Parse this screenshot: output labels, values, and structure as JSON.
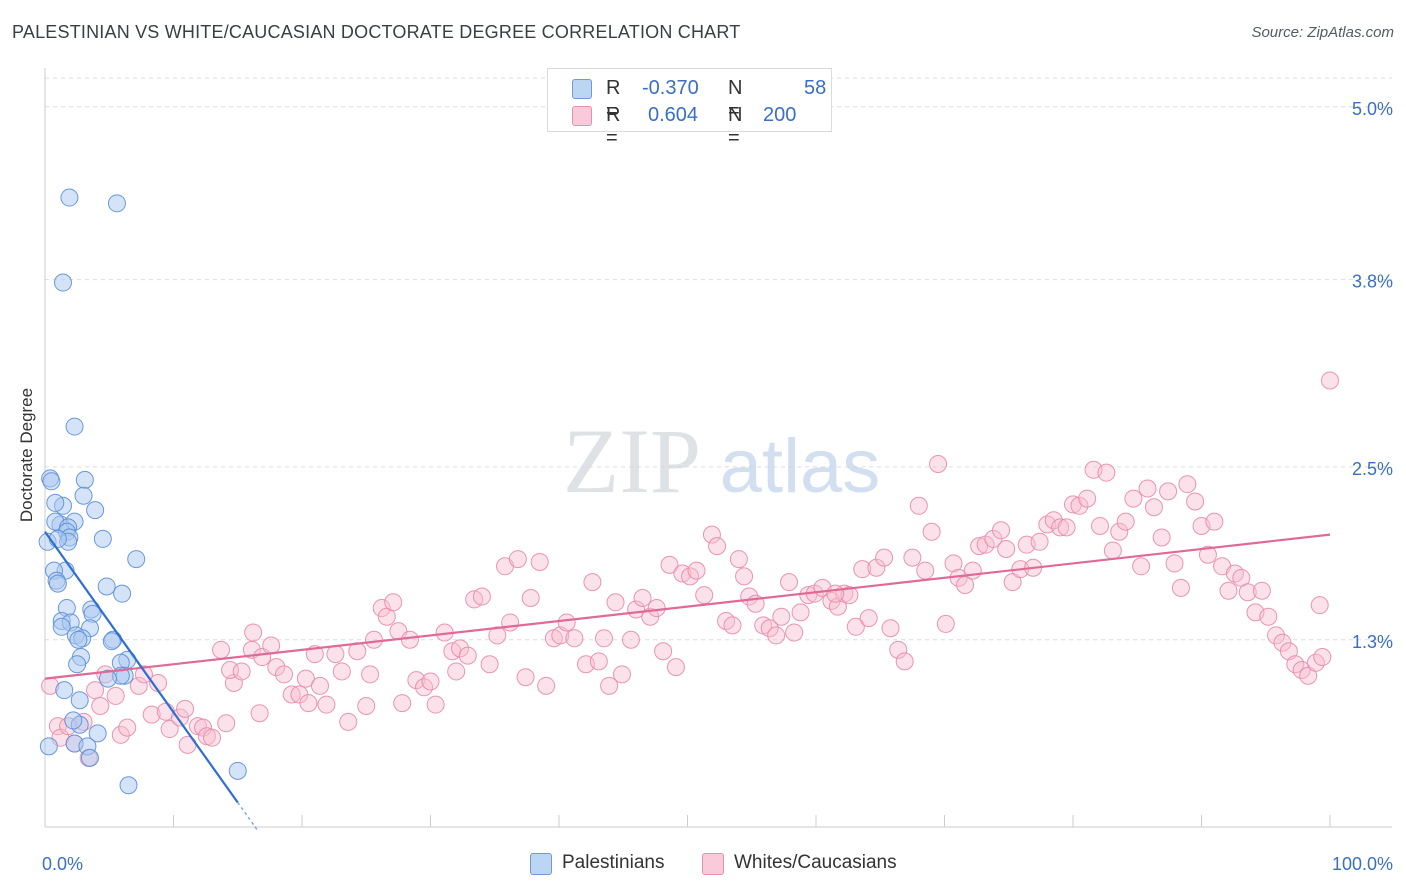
{
  "header": {
    "title": "PALESTINIAN VS WHITE/CAUCASIAN DOCTORATE DEGREE CORRELATION CHART",
    "source": "Source: ZipAtlas.com"
  },
  "legend": {
    "series1": {
      "r_label": "R =",
      "r_value": "-0.370",
      "n_label": "N =",
      "n_value": "58"
    },
    "series2": {
      "r_label": "R =",
      "r_value": "0.604",
      "n_label": "N =",
      "n_value": "200"
    }
  },
  "colors": {
    "blue_fill": "#a9c8f0",
    "blue_stroke": "#5b8fd6",
    "blue_line": "#2f6fd1",
    "pink_fill": "#f7bfd0",
    "pink_stroke": "#e889a8",
    "pink_line": "#e06a96",
    "grid": "#d9dde3",
    "axis_label": "#3a6fc4"
  },
  "chart_data": {
    "type": "scatter",
    "title": "PALESTINIAN VS WHITE/CAUCASIAN DOCTORATE DEGREE CORRELATION CHART",
    "xlabel": "",
    "ylabel": "Doctorate Degree",
    "xlim": [
      0,
      100
    ],
    "ylim": [
      0,
      5.2
    ],
    "x_tick_labels": [
      "0.0%",
      "100.0%"
    ],
    "y_ticks": [
      1.3,
      2.5,
      3.8,
      5.0
    ],
    "y_tick_labels": [
      "1.3%",
      "2.5%",
      "3.8%",
      "5.0%"
    ],
    "watermark": {
      "zip": "ZIP",
      "atlas": "atlas"
    },
    "series": [
      {
        "name": "Palestinians",
        "r": -0.37,
        "n": 58,
        "trend": {
          "x": [
            0,
            15
          ],
          "y": [
            2.05,
            0.17
          ]
        },
        "points": [
          [
            1.9,
            4.37
          ],
          [
            5.6,
            4.33
          ],
          [
            1.4,
            3.78
          ],
          [
            2.3,
            2.78
          ],
          [
            0.4,
            2.42
          ],
          [
            0.5,
            2.4
          ],
          [
            3.1,
            2.41
          ],
          [
            3.0,
            2.3
          ],
          [
            1.4,
            2.23
          ],
          [
            0.8,
            2.25
          ],
          [
            3.9,
            2.2
          ],
          [
            1.2,
            2.1
          ],
          [
            0.8,
            2.12
          ],
          [
            2.3,
            2.12
          ],
          [
            1.8,
            2.08
          ],
          [
            1.7,
            2.05
          ],
          [
            1.9,
            2.01
          ],
          [
            1.8,
            1.98
          ],
          [
            0.2,
            1.98
          ],
          [
            1.0,
            2.0
          ],
          [
            4.5,
            2.0
          ],
          [
            7.1,
            1.86
          ],
          [
            1.6,
            1.78
          ],
          [
            0.7,
            1.78
          ],
          [
            0.9,
            1.71
          ],
          [
            1.0,
            1.69
          ],
          [
            4.8,
            1.67
          ],
          [
            6.0,
            1.62
          ],
          [
            1.7,
            1.52
          ],
          [
            3.6,
            1.51
          ],
          [
            3.7,
            1.48
          ],
          [
            1.3,
            1.43
          ],
          [
            2.0,
            1.42
          ],
          [
            3.5,
            1.38
          ],
          [
            1.3,
            1.39
          ],
          [
            2.4,
            1.33
          ],
          [
            2.9,
            1.31
          ],
          [
            2.6,
            1.3
          ],
          [
            5.3,
            1.3
          ],
          [
            5.2,
            1.29
          ],
          [
            2.8,
            1.18
          ],
          [
            6.4,
            1.16
          ],
          [
            5.9,
            1.14
          ],
          [
            2.5,
            1.13
          ],
          [
            6.2,
            1.05
          ],
          [
            5.9,
            1.05
          ],
          [
            4.9,
            1.03
          ],
          [
            2.7,
            0.88
          ],
          [
            2.7,
            0.71
          ],
          [
            4.1,
            0.65
          ],
          [
            2.3,
            0.58
          ],
          [
            3.3,
            0.56
          ],
          [
            3.5,
            0.48
          ],
          [
            6.5,
            0.29
          ],
          [
            15.0,
            0.39
          ],
          [
            0.3,
            0.56
          ],
          [
            1.5,
            0.95
          ],
          [
            2.2,
            0.74
          ]
        ]
      },
      {
        "name": "Whites/Caucasians",
        "r": 0.604,
        "n": 200,
        "trend": {
          "x": [
            0,
            100
          ],
          "y": [
            1.03,
            2.03
          ]
        },
        "points": [
          [
            0.4,
            0.98
          ],
          [
            1.0,
            0.7
          ],
          [
            1.2,
            0.62
          ],
          [
            1.8,
            0.7
          ],
          [
            2.3,
            0.58
          ],
          [
            3.0,
            0.73
          ],
          [
            3.4,
            0.48
          ],
          [
            3.9,
            0.95
          ],
          [
            4.3,
            0.84
          ],
          [
            4.7,
            1.06
          ],
          [
            5.5,
            0.91
          ],
          [
            5.9,
            0.64
          ],
          [
            6.4,
            0.69
          ],
          [
            7.3,
            0.98
          ],
          [
            7.7,
            1.06
          ],
          [
            8.3,
            0.78
          ],
          [
            8.8,
            1.0
          ],
          [
            9.4,
            0.8
          ],
          [
            9.7,
            0.68
          ],
          [
            10.5,
            0.76
          ],
          [
            10.9,
            0.82
          ],
          [
            11.1,
            0.57
          ],
          [
            11.9,
            0.7
          ],
          [
            12.3,
            0.69
          ],
          [
            12.6,
            0.63
          ],
          [
            13.0,
            0.62
          ],
          [
            13.7,
            1.23
          ],
          [
            14.1,
            0.72
          ],
          [
            14.7,
            1.0
          ],
          [
            14.4,
            1.09
          ],
          [
            15.3,
            1.08
          ],
          [
            16.1,
            1.23
          ],
          [
            16.7,
            0.79
          ],
          [
            16.2,
            1.35
          ],
          [
            16.9,
            1.18
          ],
          [
            17.6,
            1.26
          ],
          [
            18.0,
            1.11
          ],
          [
            18.6,
            1.06
          ],
          [
            19.2,
            0.92
          ],
          [
            19.8,
            0.92
          ],
          [
            20.3,
            1.03
          ],
          [
            20.5,
            0.86
          ],
          [
            21.0,
            1.2
          ],
          [
            21.4,
            0.98
          ],
          [
            21.9,
            0.85
          ],
          [
            22.6,
            1.2
          ],
          [
            23.1,
            1.08
          ],
          [
            23.6,
            0.73
          ],
          [
            24.3,
            1.22
          ],
          [
            25.0,
            0.84
          ],
          [
            25.3,
            1.06
          ],
          [
            25.6,
            1.3
          ],
          [
            26.2,
            1.52
          ],
          [
            26.6,
            1.46
          ],
          [
            27.1,
            1.56
          ],
          [
            27.5,
            1.36
          ],
          [
            27.8,
            0.86
          ],
          [
            28.4,
            1.3
          ],
          [
            28.9,
            1.02
          ],
          [
            29.5,
            0.97
          ],
          [
            30.0,
            1.01
          ],
          [
            30.4,
            0.85
          ],
          [
            31.1,
            1.35
          ],
          [
            31.7,
            1.22
          ],
          [
            32.0,
            1.08
          ],
          [
            32.3,
            1.24
          ],
          [
            32.9,
            1.19
          ],
          [
            33.4,
            1.58
          ],
          [
            34.0,
            1.6
          ],
          [
            34.6,
            1.13
          ],
          [
            35.2,
            1.33
          ],
          [
            35.8,
            1.81
          ],
          [
            36.2,
            1.42
          ],
          [
            36.8,
            1.86
          ],
          [
            37.4,
            1.04
          ],
          [
            37.8,
            1.59
          ],
          [
            38.5,
            1.84
          ],
          [
            39.0,
            0.98
          ],
          [
            39.6,
            1.31
          ],
          [
            40.1,
            1.33
          ],
          [
            40.6,
            1.42
          ],
          [
            41.2,
            1.31
          ],
          [
            42.1,
            1.13
          ],
          [
            42.6,
            1.7
          ],
          [
            43.1,
            1.15
          ],
          [
            43.5,
            1.31
          ],
          [
            43.9,
            0.98
          ],
          [
            44.4,
            1.56
          ],
          [
            44.9,
            1.06
          ],
          [
            45.6,
            1.3
          ],
          [
            46.0,
            1.51
          ],
          [
            46.5,
            1.59
          ],
          [
            47.1,
            1.46
          ],
          [
            47.6,
            1.52
          ],
          [
            48.1,
            1.22
          ],
          [
            48.6,
            1.82
          ],
          [
            49.1,
            1.11
          ],
          [
            49.6,
            1.76
          ],
          [
            50.2,
            1.74
          ],
          [
            50.7,
            1.78
          ],
          [
            51.3,
            1.61
          ],
          [
            51.9,
            2.03
          ],
          [
            52.3,
            1.95
          ],
          [
            53.0,
            1.43
          ],
          [
            53.5,
            1.4
          ],
          [
            54.0,
            1.86
          ],
          [
            54.4,
            1.74
          ],
          [
            54.8,
            1.6
          ],
          [
            55.3,
            1.55
          ],
          [
            55.9,
            1.4
          ],
          [
            56.4,
            1.38
          ],
          [
            56.9,
            1.33
          ],
          [
            57.3,
            1.46
          ],
          [
            57.9,
            1.7
          ],
          [
            58.3,
            1.35
          ],
          [
            58.8,
            1.49
          ],
          [
            59.4,
            1.61
          ],
          [
            59.9,
            1.62
          ],
          [
            60.5,
            1.66
          ],
          [
            61.2,
            1.57
          ],
          [
            61.7,
            1.53
          ],
          [
            62.2,
            1.62
          ],
          [
            62.6,
            1.61
          ],
          [
            63.1,
            1.39
          ],
          [
            63.6,
            1.79
          ],
          [
            64.1,
            1.45
          ],
          [
            64.7,
            1.8
          ],
          [
            65.3,
            1.87
          ],
          [
            65.8,
            1.38
          ],
          [
            66.4,
            1.23
          ],
          [
            66.9,
            1.15
          ],
          [
            67.5,
            1.87
          ],
          [
            68.0,
            2.23
          ],
          [
            68.5,
            1.78
          ],
          [
            69.0,
            2.05
          ],
          [
            69.5,
            2.52
          ],
          [
            70.1,
            1.41
          ],
          [
            70.7,
            1.83
          ],
          [
            71.1,
            1.73
          ],
          [
            71.6,
            1.68
          ],
          [
            72.2,
            1.78
          ],
          [
            72.7,
            1.95
          ],
          [
            73.2,
            1.96
          ],
          [
            73.8,
            2.0
          ],
          [
            74.4,
            2.06
          ],
          [
            74.8,
            1.93
          ],
          [
            75.3,
            1.7
          ],
          [
            75.9,
            1.79
          ],
          [
            76.4,
            1.96
          ],
          [
            76.9,
            1.8
          ],
          [
            77.4,
            1.98
          ],
          [
            78.0,
            2.1
          ],
          [
            78.5,
            2.13
          ],
          [
            79.0,
            2.08
          ],
          [
            79.5,
            2.08
          ],
          [
            80.0,
            2.24
          ],
          [
            80.5,
            2.23
          ],
          [
            81.1,
            2.28
          ],
          [
            81.6,
            2.48
          ],
          [
            82.1,
            2.09
          ],
          [
            82.6,
            2.46
          ],
          [
            83.1,
            1.92
          ],
          [
            83.6,
            2.05
          ],
          [
            84.1,
            2.12
          ],
          [
            84.7,
            2.28
          ],
          [
            85.3,
            1.81
          ],
          [
            85.8,
            2.35
          ],
          [
            86.3,
            2.22
          ],
          [
            86.9,
            2.01
          ],
          [
            87.4,
            2.33
          ],
          [
            87.9,
            1.83
          ],
          [
            88.4,
            1.66
          ],
          [
            88.9,
            2.38
          ],
          [
            89.5,
            2.26
          ],
          [
            90.0,
            2.09
          ],
          [
            90.5,
            1.89
          ],
          [
            91.0,
            2.12
          ],
          [
            91.6,
            1.81
          ],
          [
            92.1,
            1.64
          ],
          [
            92.6,
            1.76
          ],
          [
            93.1,
            1.73
          ],
          [
            93.6,
            1.63
          ],
          [
            94.2,
            1.49
          ],
          [
            94.7,
            1.64
          ],
          [
            95.2,
            1.46
          ],
          [
            95.8,
            1.33
          ],
          [
            96.3,
            1.28
          ],
          [
            96.8,
            1.22
          ],
          [
            97.3,
            1.13
          ],
          [
            97.8,
            1.09
          ],
          [
            98.3,
            1.05
          ],
          [
            98.9,
            1.14
          ],
          [
            99.4,
            1.18
          ],
          [
            100.0,
            3.1
          ],
          [
            99.2,
            1.54
          ],
          [
            61.5,
            1.62
          ]
        ]
      }
    ]
  }
}
